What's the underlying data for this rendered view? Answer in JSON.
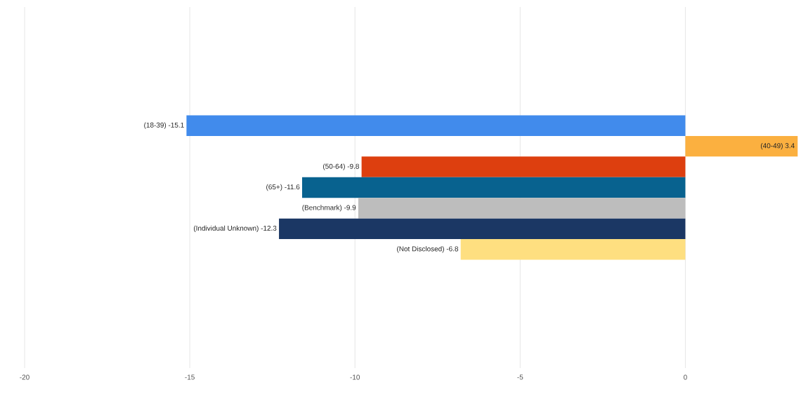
{
  "chart_data": {
    "type": "bar",
    "orientation": "horizontal",
    "categories": [
      null
    ],
    "series": [
      {
        "color": "#418bec",
        "values": [
          -15.1
        ],
        "value_labels": [
          "(18-39) -15.1"
        ]
      },
      {
        "color": "#fbb040",
        "values": [
          3.4
        ],
        "value_labels": [
          "(40-49) 3.4"
        ]
      },
      {
        "color": "#dd3f0f",
        "values": [
          -9.8
        ],
        "value_labels": [
          "(50-64) -9.8"
        ]
      },
      {
        "color": "#08628f",
        "values": [
          -11.6
        ],
        "value_labels": [
          "(65+) -11.6"
        ]
      },
      {
        "color": "#bdbdbd",
        "values": [
          -9.9
        ],
        "value_labels": [
          "(Benchmark) -9.9"
        ]
      },
      {
        "color": "#1b3764",
        "values": [
          -12.3
        ],
        "value_labels": [
          "(Individual Unknown) -12.3"
        ]
      },
      {
        "color": "#fedf80",
        "values": [
          -6.8
        ],
        "value_labels": [
          "(Not Disclosed) -6.8"
        ]
      }
    ],
    "xlim": [
      -20,
      3.5
    ],
    "xticks": [
      -20,
      -15,
      -10,
      -5,
      0
    ],
    "grid": "x"
  }
}
